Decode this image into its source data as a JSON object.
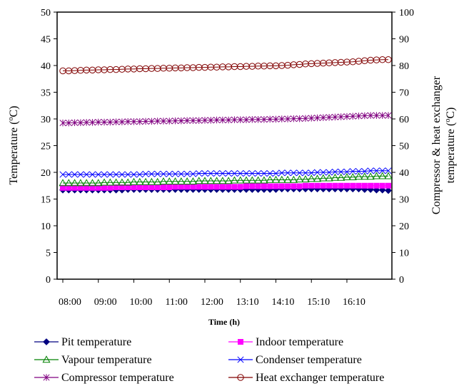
{
  "chart_data": {
    "type": "line",
    "xlabel": "Time (h)",
    "ylabel": "Temperature (",
    "ylabel_unit": "o",
    "ylabel_end": "C)",
    "y2label_line1": "Compressor & heat exchanger",
    "y2label_line2": "temperature (",
    "y2label_unit": "o",
    "y2label_end": "C)",
    "ylim": [
      0,
      50
    ],
    "y2lim": [
      0,
      100
    ],
    "yticks": [
      "0",
      "5",
      "10",
      "15",
      "20",
      "25",
      "30",
      "35",
      "40",
      "45",
      "50"
    ],
    "y2ticks": [
      "0",
      "10",
      "20",
      "30",
      "40",
      "50",
      "60",
      "70",
      "80",
      "90",
      "100"
    ],
    "x_tick_labels": [
      "08:00",
      "09:00",
      "10:00",
      "11:00",
      "12:00",
      "13:10",
      "14:10",
      "15:10",
      "16:10"
    ],
    "series": [
      {
        "name": "Pit temperature",
        "axis": "left",
        "marker": "diamond",
        "color": "#000080",
        "filled": true,
        "values": [
          16.7,
          16.7,
          16.7,
          16.7,
          16.7,
          16.7,
          16.7,
          16.7,
          16.7,
          16.7,
          16.7,
          16.8,
          16.8,
          16.8,
          16.8,
          16.8,
          16.8,
          16.8,
          16.8,
          16.8,
          16.8,
          16.8,
          16.8,
          16.8,
          16.8,
          16.8,
          16.8,
          16.8,
          16.8,
          16.8,
          16.8,
          16.8,
          16.8,
          16.8,
          16.8,
          16.8,
          16.8,
          16.9,
          16.9,
          16.9,
          16.9,
          16.9,
          16.9,
          16.9,
          16.9,
          16.9,
          16.9,
          16.9,
          16.9,
          16.9,
          16.9,
          16.8,
          16.8,
          16.7,
          16.7,
          16.6
        ]
      },
      {
        "name": "Indoor temperature",
        "axis": "left",
        "marker": "square",
        "color": "#FF00FF",
        "filled": true,
        "values": [
          17.1,
          17.1,
          17.1,
          17.1,
          17.1,
          17.1,
          17.1,
          17.1,
          17.1,
          17.2,
          17.2,
          17.2,
          17.2,
          17.2,
          17.2,
          17.2,
          17.2,
          17.2,
          17.2,
          17.3,
          17.3,
          17.3,
          17.3,
          17.3,
          17.3,
          17.3,
          17.3,
          17.3,
          17.3,
          17.3,
          17.3,
          17.4,
          17.4,
          17.4,
          17.4,
          17.4,
          17.4,
          17.4,
          17.4,
          17.4,
          17.4,
          17.5,
          17.5,
          17.5,
          17.5,
          17.5,
          17.5,
          17.5,
          17.5,
          17.5,
          17.5,
          17.5,
          17.5,
          17.5,
          17.5,
          17.5
        ]
      },
      {
        "name": "Vapour temperature",
        "axis": "left",
        "marker": "triangle",
        "color": "#008000",
        "filled": false,
        "values": [
          18.0,
          18.0,
          18.0,
          18.0,
          18.0,
          18.0,
          18.0,
          18.1,
          18.1,
          18.1,
          18.1,
          18.1,
          18.2,
          18.2,
          18.2,
          18.2,
          18.2,
          18.3,
          18.3,
          18.3,
          18.3,
          18.3,
          18.3,
          18.4,
          18.4,
          18.4,
          18.4,
          18.4,
          18.4,
          18.5,
          18.5,
          18.5,
          18.5,
          18.5,
          18.5,
          18.6,
          18.6,
          18.6,
          18.6,
          18.6,
          18.7,
          18.7,
          18.8,
          18.8,
          18.9,
          18.9,
          19.0,
          19.0,
          19.1,
          19.1,
          19.2,
          19.2,
          19.2,
          19.3,
          19.3,
          19.3
        ]
      },
      {
        "name": "Condenser temperature",
        "axis": "left",
        "marker": "x",
        "color": "#0000FF",
        "filled": false,
        "values": [
          19.6,
          19.6,
          19.6,
          19.6,
          19.6,
          19.6,
          19.6,
          19.6,
          19.6,
          19.6,
          19.6,
          19.6,
          19.6,
          19.6,
          19.7,
          19.7,
          19.7,
          19.7,
          19.7,
          19.7,
          19.7,
          19.7,
          19.7,
          19.8,
          19.8,
          19.8,
          19.8,
          19.8,
          19.8,
          19.8,
          19.8,
          19.8,
          19.8,
          19.8,
          19.8,
          19.8,
          19.8,
          19.9,
          19.9,
          19.9,
          19.9,
          19.9,
          19.9,
          20.0,
          20.0,
          20.0,
          20.1,
          20.1,
          20.1,
          20.2,
          20.2,
          20.2,
          20.3,
          20.3,
          20.3,
          20.3
        ]
      },
      {
        "name": "Compressor temperature",
        "axis": "right",
        "marker": "star",
        "color": "#800080",
        "filled": false,
        "values": [
          58.5,
          58.5,
          58.6,
          58.6,
          58.7,
          58.7,
          58.8,
          58.8,
          58.8,
          58.9,
          58.9,
          59.0,
          59.0,
          59.0,
          59.1,
          59.1,
          59.2,
          59.2,
          59.2,
          59.3,
          59.3,
          59.4,
          59.4,
          59.4,
          59.5,
          59.5,
          59.6,
          59.6,
          59.6,
          59.7,
          59.7,
          59.7,
          59.8,
          59.8,
          59.8,
          59.9,
          59.9,
          60.0,
          60.0,
          60.1,
          60.1,
          60.2,
          60.3,
          60.4,
          60.5,
          60.6,
          60.7,
          60.8,
          60.9,
          61.0,
          61.1,
          61.2,
          61.3,
          61.3,
          61.3,
          61.3
        ]
      },
      {
        "name": "Heat exchanger temperature",
        "axis": "right",
        "marker": "circle",
        "color": "#800000",
        "filled": false,
        "values": [
          78.0,
          78.0,
          78.1,
          78.2,
          78.3,
          78.3,
          78.4,
          78.4,
          78.5,
          78.5,
          78.6,
          78.7,
          78.7,
          78.8,
          78.8,
          78.9,
          78.9,
          79.0,
          79.0,
          79.1,
          79.1,
          79.2,
          79.2,
          79.3,
          79.3,
          79.4,
          79.4,
          79.5,
          79.5,
          79.6,
          79.6,
          79.7,
          79.7,
          79.8,
          79.8,
          79.9,
          79.9,
          80.0,
          80.1,
          80.3,
          80.4,
          80.6,
          80.7,
          80.8,
          80.9,
          81.0,
          81.1,
          81.2,
          81.3,
          81.4,
          81.6,
          81.8,
          82.0,
          82.1,
          82.2,
          82.2
        ]
      }
    ],
    "legend_position": "bottom",
    "grid": false
  }
}
